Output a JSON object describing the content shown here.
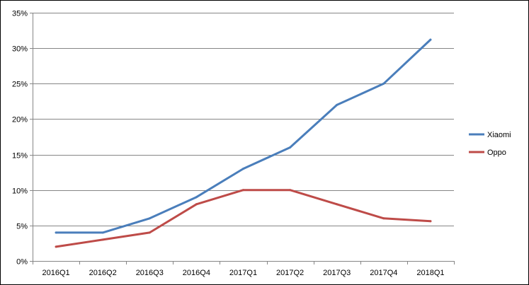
{
  "chart_data": {
    "type": "line",
    "title": "",
    "xlabel": "",
    "ylabel": "",
    "categories": [
      "2016Q1",
      "2016Q2",
      "2016Q3",
      "2016Q4",
      "2017Q1",
      "2017Q2",
      "2017Q3",
      "2017Q4",
      "2018Q1"
    ],
    "series": [
      {
        "name": "Xiaomi",
        "color": "#4a7ebb",
        "values": [
          4,
          4,
          6,
          9,
          13,
          16,
          22,
          25,
          31.2
        ]
      },
      {
        "name": "Oppo",
        "color": "#be4b48",
        "values": [
          2,
          3,
          4,
          8,
          10,
          10,
          8,
          6,
          5.6
        ]
      }
    ],
    "ylim": [
      0,
      35
    ],
    "yticks": [
      {
        "value": 0,
        "label": "0%"
      },
      {
        "value": 5,
        "label": "5%"
      },
      {
        "value": 10,
        "label": "10%"
      },
      {
        "value": 15,
        "label": "15%"
      },
      {
        "value": 20,
        "label": "20%"
      },
      {
        "value": 25,
        "label": "25%"
      },
      {
        "value": 30,
        "label": "30%"
      },
      {
        "value": 35,
        "label": "35%"
      }
    ],
    "grid": true,
    "gridlines": "horizontal",
    "legend_position": "right",
    "border_color": "#000000",
    "gridline_color": "#868686"
  }
}
